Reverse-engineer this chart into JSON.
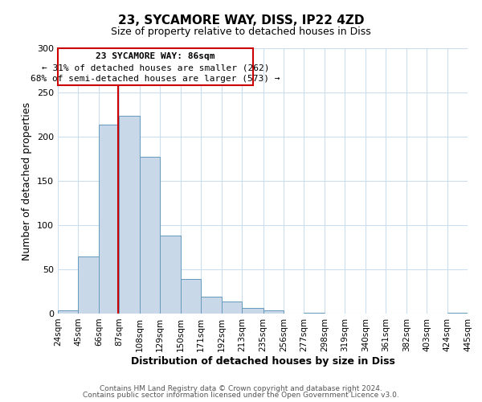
{
  "title": "23, SYCAMORE WAY, DISS, IP22 4ZD",
  "subtitle": "Size of property relative to detached houses in Diss",
  "xlabel": "Distribution of detached houses by size in Diss",
  "ylabel": "Number of detached properties",
  "footer_line1": "Contains HM Land Registry data © Crown copyright and database right 2024.",
  "footer_line2": "Contains public sector information licensed under the Open Government Licence v3.0.",
  "bin_edges": [
    24,
    45,
    66,
    87,
    108,
    129,
    150,
    171,
    192,
    213,
    235,
    256,
    277,
    298,
    319,
    340,
    361,
    382,
    403,
    424,
    445
  ],
  "bin_labels": [
    "24sqm",
    "45sqm",
    "66sqm",
    "87sqm",
    "108sqm",
    "129sqm",
    "150sqm",
    "171sqm",
    "192sqm",
    "213sqm",
    "235sqm",
    "256sqm",
    "277sqm",
    "298sqm",
    "319sqm",
    "340sqm",
    "361sqm",
    "382sqm",
    "403sqm",
    "424sqm",
    "445sqm"
  ],
  "bar_heights": [
    4,
    65,
    214,
    224,
    177,
    88,
    39,
    19,
    14,
    6,
    4,
    0,
    1,
    0,
    0,
    0,
    0,
    0,
    0,
    1
  ],
  "bar_color": "#c8d8e8",
  "bar_edge_color": "#6699bb",
  "property_line_x": 86,
  "property_line_color": "#cc0000",
  "annotation_title": "23 SYCAMORE WAY: 86sqm",
  "annotation_line1": "← 31% of detached houses are smaller (262)",
  "annotation_line2": "68% of semi-detached houses are larger (573) →",
  "annotation_box_color": "#cc0000",
  "ylim": [
    0,
    300
  ],
  "yticks": [
    0,
    50,
    100,
    150,
    200,
    250,
    300
  ],
  "background_color": "#ffffff",
  "grid_color": "#ccddee"
}
